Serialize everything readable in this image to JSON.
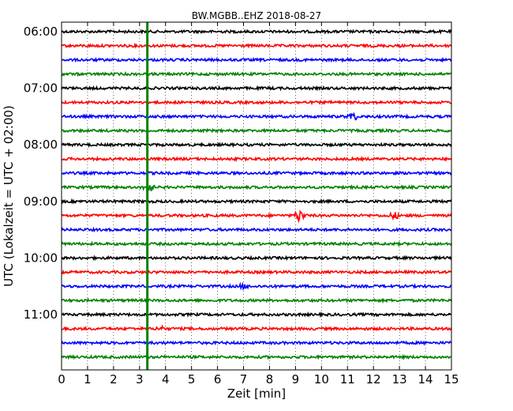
{
  "chart_data": {
    "type": "line",
    "title": "BW.MGBB..EHZ 2018-08-27",
    "xlabel": "Zeit  [min]",
    "ylabel": "UTC (Lokalzeit = UTC + 02:00)",
    "xlim": [
      0,
      15
    ],
    "x_ticks": [
      "0",
      "1",
      "2",
      "3",
      "4",
      "5",
      "6",
      "7",
      "8",
      "9",
      "10",
      "11",
      "12",
      "13",
      "14",
      "15"
    ],
    "y_tick_labels": [
      "06:00",
      "07:00",
      "08:00",
      "09:00",
      "10:00",
      "11:00"
    ],
    "grid": "vertical dotted",
    "trace_interval_minutes": 15,
    "trace_colors": [
      "#000000",
      "#ff0000",
      "#0000ff",
      "#008000"
    ],
    "traces": [
      {
        "start": "06:00",
        "color": "#000000"
      },
      {
        "start": "06:15",
        "color": "#ff0000"
      },
      {
        "start": "06:30",
        "color": "#0000ff"
      },
      {
        "start": "06:45",
        "color": "#008000"
      },
      {
        "start": "07:00",
        "color": "#000000"
      },
      {
        "start": "07:15",
        "color": "#ff0000"
      },
      {
        "start": "07:30",
        "color": "#0000ff",
        "events": [
          {
            "t": 11.2,
            "amp": 3
          }
        ]
      },
      {
        "start": "07:45",
        "color": "#008000"
      },
      {
        "start": "08:00",
        "color": "#000000"
      },
      {
        "start": "08:15",
        "color": "#ff0000"
      },
      {
        "start": "08:30",
        "color": "#0000ff"
      },
      {
        "start": "08:45",
        "color": "#008000",
        "events": [
          {
            "t": 3.35,
            "amp": 4
          }
        ]
      },
      {
        "start": "09:00",
        "color": "#000000"
      },
      {
        "start": "09:15",
        "color": "#ff0000",
        "events": [
          {
            "t": 9.15,
            "amp": 5
          },
          {
            "t": 12.8,
            "amp": 2.5
          }
        ]
      },
      {
        "start": "09:30",
        "color": "#0000ff"
      },
      {
        "start": "09:45",
        "color": "#008000"
      },
      {
        "start": "10:00",
        "color": "#000000"
      },
      {
        "start": "10:15",
        "color": "#ff0000"
      },
      {
        "start": "10:30",
        "color": "#0000ff",
        "events": [
          {
            "t": 7.0,
            "amp": 1.5
          }
        ]
      },
      {
        "start": "10:45",
        "color": "#008000"
      },
      {
        "start": "11:00",
        "color": "#000000"
      },
      {
        "start": "11:15",
        "color": "#ff0000",
        "events": [
          {
            "t": 3.8,
            "amp": 1.5
          }
        ]
      },
      {
        "start": "11:30",
        "color": "#0000ff"
      },
      {
        "start": "11:45",
        "color": "#008000"
      }
    ],
    "marker_line": {
      "x": 3.3,
      "color": "#008000"
    }
  }
}
